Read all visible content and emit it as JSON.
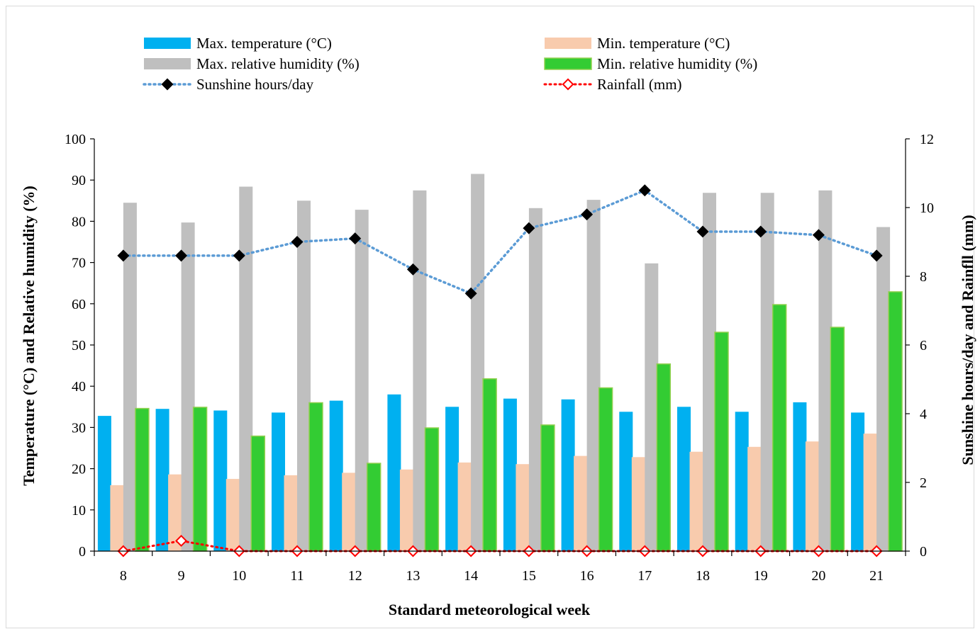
{
  "chart_data": {
    "type": "bar",
    "categories": [
      "8",
      "9",
      "10",
      "11",
      "12",
      "13",
      "14",
      "15",
      "16",
      "17",
      "18",
      "19",
      "20",
      "21"
    ],
    "xlabel": "Standard meteorological week",
    "ylabel_left": "Temperature (°C) and Relative humidity (%)",
    "ylabel_right": "Sunshine hours/day and Rainfll (mm)",
    "ylim_left": [
      0,
      100
    ],
    "yticks_left": [
      "0",
      "10",
      "20",
      "30",
      "40",
      "50",
      "60",
      "70",
      "80",
      "90",
      "100"
    ],
    "ylim_right": [
      0,
      12
    ],
    "yticks_right": [
      "0",
      "2",
      "4",
      "6",
      "8",
      "10",
      "12"
    ],
    "grid": false,
    "legend_position": "top",
    "series": [
      {
        "name": "Max. temperature (°C)",
        "type": "bar",
        "axis": "left",
        "color": "#00B0F0",
        "values": [
          32.8,
          34.5,
          34.1,
          33.6,
          36.5,
          38.0,
          35.0,
          37.0,
          36.8,
          33.8,
          35.0,
          33.8,
          36.1,
          33.6
        ]
      },
      {
        "name": "Min. temperature (°C)",
        "type": "bar",
        "axis": "left",
        "color": "#F8CBAD",
        "values": [
          16.0,
          18.6,
          17.5,
          18.4,
          19.0,
          19.8,
          21.5,
          21.1,
          23.1,
          22.8,
          24.1,
          25.3,
          26.6,
          28.5
        ]
      },
      {
        "name": "Max. relative humidity (%)",
        "type": "bar",
        "axis": "left",
        "color": "#BFBFBF",
        "values": [
          84.5,
          79.7,
          88.4,
          85.0,
          82.8,
          87.5,
          91.5,
          83.2,
          85.2,
          69.8,
          86.9,
          86.9,
          87.5,
          78.6
        ]
      },
      {
        "name": "Min. relative humidity (%)",
        "type": "bar",
        "axis": "left",
        "color": "#33CC33",
        "values": [
          34.6,
          34.9,
          27.9,
          36.0,
          21.3,
          29.9,
          41.8,
          30.6,
          39.6,
          45.4,
          53.1,
          59.8,
          54.3,
          62.9
        ]
      },
      {
        "name": "Sunshine hours/day",
        "type": "line",
        "axis": "right",
        "color": "#5B9BD5",
        "values": [
          8.6,
          8.6,
          8.6,
          9.0,
          9.1,
          8.2,
          7.5,
          9.4,
          9.8,
          10.5,
          9.3,
          9.3,
          9.2,
          8.6
        ]
      },
      {
        "name": "Rainfall (mm)",
        "type": "line",
        "axis": "right",
        "color": "#FF0000",
        "values": [
          0,
          0.3,
          0,
          0,
          0,
          0,
          0,
          0,
          0,
          0,
          0,
          0,
          0,
          0
        ]
      }
    ]
  }
}
